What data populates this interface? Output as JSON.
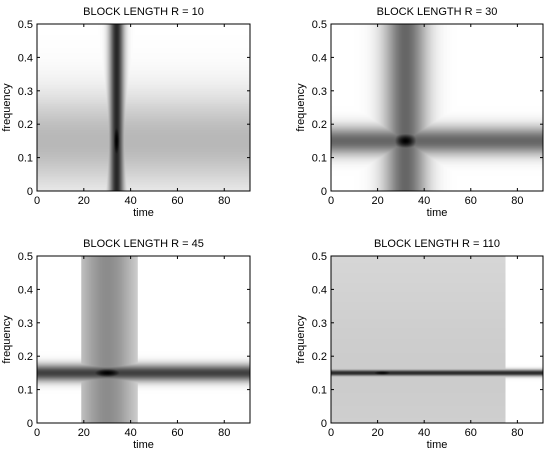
{
  "chart_data": [
    {
      "type": "heatmap",
      "title": "BLOCK LENGTH R = 10",
      "xlabel": "time",
      "ylabel": "frequency",
      "xlim": [
        0,
        91
      ],
      "ylim": [
        0,
        0.5
      ],
      "xticks": [
        0,
        20,
        40,
        60,
        80
      ],
      "yticks": [
        0,
        0.1,
        0.2,
        0.3,
        0.4,
        0.5
      ],
      "colormap": "white-to-black",
      "features": {
        "vertical_line": {
          "time": 34,
          "width": 2.2,
          "intensity": 0.85,
          "t_extent": [
            0,
            91
          ]
        },
        "horizontal_band": {
          "frequency": 0.15,
          "width": 0.1,
          "intensity": 0.28,
          "t_extent": [
            0,
            91
          ]
        },
        "peak": {
          "time": 34,
          "frequency": 0.15,
          "intensity": 1.0
        }
      }
    },
    {
      "type": "heatmap",
      "title": "BLOCK LENGTH R = 30",
      "xlabel": "time",
      "ylabel": "frequency",
      "xlim": [
        0,
        91
      ],
      "ylim": [
        0,
        0.5
      ],
      "xticks": [
        0,
        20,
        40,
        60,
        80
      ],
      "yticks": [
        0,
        0.1,
        0.2,
        0.3,
        0.4,
        0.5
      ],
      "colormap": "white-to-black",
      "features": {
        "vertical_line": {
          "time": 32,
          "width": 6.5,
          "intensity": 0.6,
          "t_extent": [
            0,
            91
          ]
        },
        "horizontal_band": {
          "frequency": 0.15,
          "width": 0.03,
          "intensity": 0.6,
          "t_extent": [
            0,
            91
          ]
        },
        "peak": {
          "time": 32,
          "frequency": 0.15,
          "intensity": 1.0
        }
      }
    },
    {
      "type": "heatmap",
      "title": "BLOCK LENGTH R = 45",
      "xlabel": "time",
      "ylabel": "frequency",
      "xlim": [
        0,
        91
      ],
      "ylim": [
        0,
        0.5
      ],
      "xticks": [
        0,
        20,
        40,
        60,
        80
      ],
      "yticks": [
        0,
        0.1,
        0.2,
        0.3,
        0.4,
        0.5
      ],
      "colormap": "white-to-black",
      "features": {
        "vertical_line": {
          "time": 30,
          "width": 10,
          "intensity": 0.45,
          "t_extent": [
            19,
            43
          ]
        },
        "horizontal_band": {
          "frequency": 0.15,
          "width": 0.018,
          "intensity": 0.75,
          "t_extent": [
            0,
            91
          ]
        },
        "peak": {
          "time": 30,
          "frequency": 0.15,
          "intensity": 1.0
        }
      }
    },
    {
      "type": "heatmap",
      "title": "BLOCK LENGTH R = 110",
      "xlabel": "time",
      "ylabel": "frequency",
      "xlim": [
        0,
        91
      ],
      "ylim": [
        0,
        0.5
      ],
      "xticks": [
        0,
        20,
        40,
        60,
        80
      ],
      "yticks": [
        0,
        0.1,
        0.2,
        0.3,
        0.4,
        0.5
      ],
      "colormap": "white-to-black",
      "features": {
        "background_block": {
          "t_extent": [
            0,
            75
          ],
          "intensity": 0.2
        },
        "horizontal_band": {
          "frequency": 0.15,
          "width": 0.007,
          "intensity": 0.85,
          "t_extent": [
            0,
            91
          ]
        },
        "peak": {
          "time": 22,
          "frequency": 0.15,
          "intensity": 1.0
        }
      }
    }
  ]
}
